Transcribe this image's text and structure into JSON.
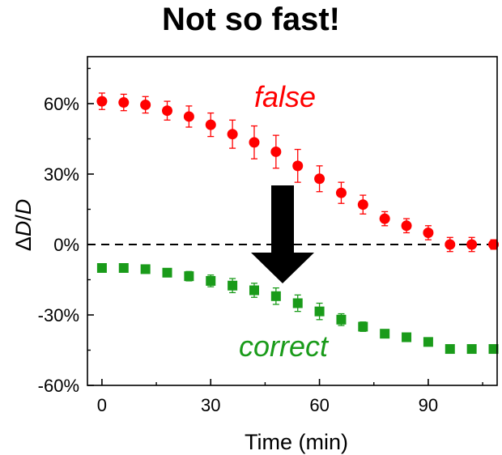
{
  "title": "Not so fast!",
  "chart_data": {
    "type": "scatter",
    "title": "Not so fast!",
    "xlabel": "Time (min)",
    "ylabel_prefix": "Δ",
    "ylabel_var": "D",
    "ylabel_sep": "/",
    "ylabel_var2": "D",
    "xlim": [
      -4,
      109
    ],
    "ylim": [
      -60,
      80
    ],
    "xticks": [
      0,
      30,
      60,
      90
    ],
    "xtick_labels": [
      "0",
      "30",
      "60",
      "90"
    ],
    "yticks": [
      -60,
      -30,
      0,
      30,
      60
    ],
    "ytick_labels": [
      "-60%",
      "-30%",
      "0%",
      "30%",
      "60%"
    ],
    "reference_line": {
      "y": 0,
      "style": "dashed"
    },
    "arrow": {
      "color": "#000000",
      "direction": "down"
    },
    "series": [
      {
        "name": "false",
        "color": "#ff0000",
        "marker": "circle",
        "x": [
          0,
          6,
          12,
          18,
          24,
          30,
          36,
          42,
          48,
          54,
          60,
          66,
          72,
          78,
          84,
          90,
          96,
          102,
          108
        ],
        "y": [
          61,
          60.5,
          59.5,
          57,
          54.5,
          51,
          47,
          43.5,
          39.5,
          33.5,
          28,
          22,
          17,
          11,
          8,
          5,
          0,
          0,
          0
        ],
        "err": [
          3.5,
          3.5,
          3.5,
          4,
          4.5,
          5,
          6,
          7,
          7,
          7,
          5.5,
          4.5,
          4,
          3,
          3,
          3,
          3,
          3,
          2
        ]
      },
      {
        "name": "correct",
        "color": "#1a9b1a",
        "marker": "square",
        "x": [
          0,
          6,
          12,
          18,
          24,
          30,
          36,
          42,
          48,
          54,
          60,
          66,
          72,
          78,
          84,
          90,
          96,
          102,
          108
        ],
        "y": [
          -10,
          -10,
          -10.5,
          -12,
          -13.5,
          -15.5,
          -17.5,
          -19.5,
          -22,
          -25,
          -28.5,
          -32,
          -35,
          -38,
          -39.5,
          -41.5,
          -44.5,
          -44.5,
          -44.5
        ],
        "err": [
          1.5,
          1.5,
          1.5,
          1.5,
          2,
          2.5,
          3,
          3,
          3.5,
          3.5,
          3.5,
          2.5,
          2,
          1.5,
          1.5,
          1.5,
          1.5,
          1.5,
          1.5
        ]
      }
    ],
    "annotations": [
      {
        "text": "false",
        "color": "#ff0000"
      },
      {
        "text": "correct",
        "color": "#1a9b1a"
      }
    ]
  }
}
